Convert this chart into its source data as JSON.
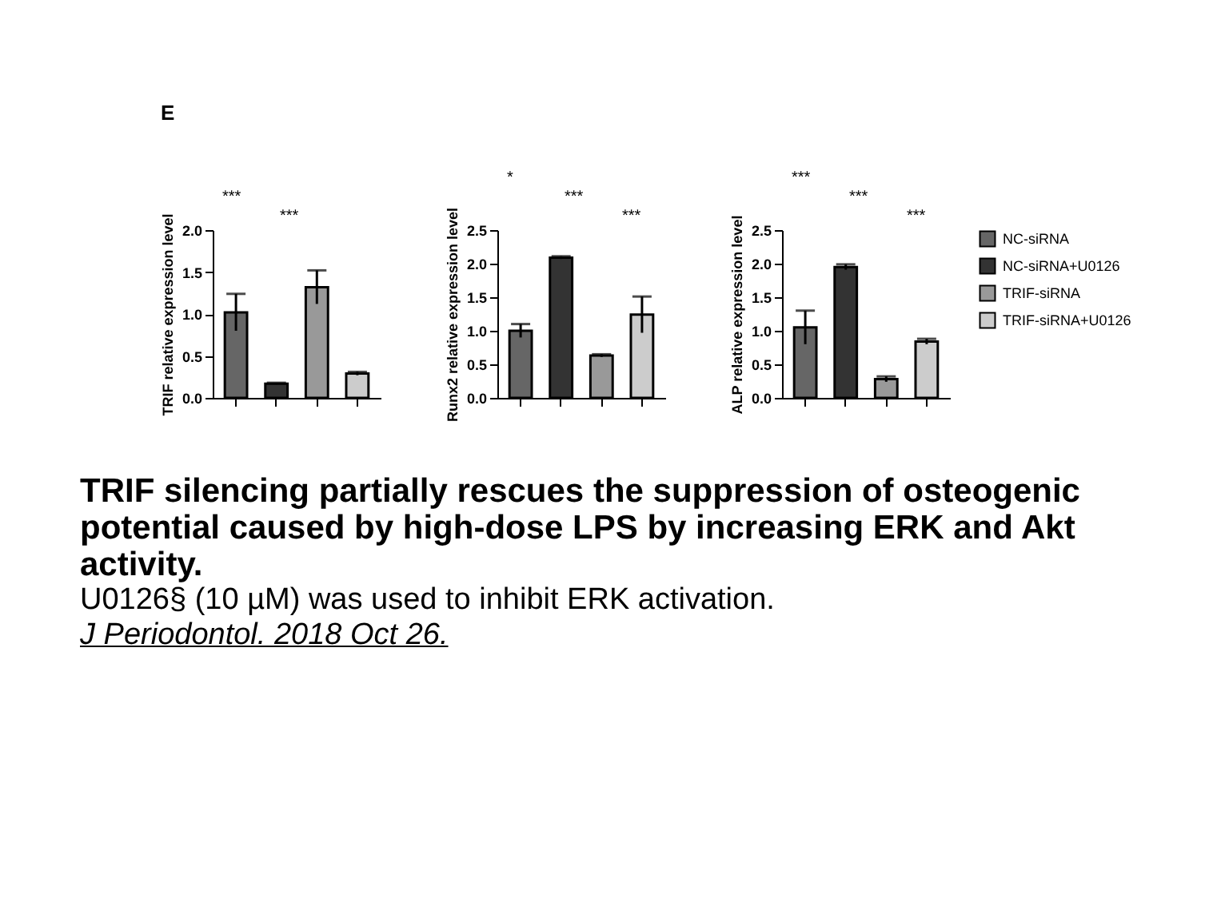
{
  "chart_data": [
    {
      "type": "bar",
      "title": "E",
      "ylabel": "TRIF relative expression level",
      "categories": [
        null,
        null,
        null,
        null
      ],
      "series": [
        {
          "color": "#666666",
          "values": [
            1.02,
            null,
            null,
            null
          ],
          "errors": [
            0.22,
            null,
            null,
            null
          ]
        },
        {
          "color": "#333333",
          "values": [
            null,
            0.17,
            null,
            null
          ],
          "errors": [
            null,
            0.01,
            null,
            null
          ]
        },
        {
          "color": "#999999",
          "values": [
            null,
            null,
            1.32,
            null
          ],
          "errors": [
            null,
            null,
            0.2,
            null
          ]
        },
        {
          "color": "#cccccc",
          "values": [
            null,
            null,
            null,
            0.29
          ],
          "errors": [
            null,
            null,
            null,
            0.02
          ]
        }
      ],
      "ylim": [
        0,
        2
      ],
      "yticks": [
        {
          "value": 0,
          "label": "0.0"
        },
        {
          "value": 0.5,
          "label": "0.5"
        },
        {
          "value": 1,
          "label": "1.0"
        },
        {
          "value": 1.5,
          "label": "1.5"
        },
        {
          "value": 2,
          "label": "2.0"
        }
      ],
      "tick_labels": "y",
      "annotations": [
        "***",
        "***"
      ]
    },
    {
      "type": "bar",
      "ylabel": "Runx2 relative expression level",
      "categories": [
        null,
        null,
        null,
        null
      ],
      "series": [
        {
          "color": "#666666",
          "values": [
            1.0,
            null,
            null,
            null
          ],
          "errors": [
            0.1,
            null,
            null,
            null
          ]
        },
        {
          "color": "#333333",
          "values": [
            null,
            2.09,
            null,
            null
          ],
          "errors": [
            null,
            0.02,
            null,
            null
          ]
        },
        {
          "color": "#999999",
          "values": [
            null,
            null,
            0.63,
            null
          ],
          "errors": [
            null,
            null,
            0.02,
            null
          ]
        },
        {
          "color": "#cccccc",
          "values": [
            null,
            null,
            null,
            1.24
          ],
          "errors": [
            null,
            null,
            null,
            0.27
          ]
        }
      ],
      "ylim": [
        0,
        2.5
      ],
      "yticks": [
        {
          "value": 0,
          "label": "0.0"
        },
        {
          "value": 0.5,
          "label": "0.5"
        },
        {
          "value": 1,
          "label": "1.0"
        },
        {
          "value": 1.5,
          "label": "1.5"
        },
        {
          "value": 2,
          "label": "2.0"
        },
        {
          "value": 2.5,
          "label": "2.5"
        }
      ],
      "tick_labels": "y",
      "annotations": [
        "*",
        "***",
        "***"
      ]
    },
    {
      "type": "bar",
      "ylabel": "ALP relative expression level",
      "categories": [
        null,
        null,
        null,
        null
      ],
      "series": [
        {
          "name": "NC-siRNA",
          "color": "#666666",
          "values": [
            1.05,
            null,
            null,
            null
          ],
          "errors": [
            0.25,
            null,
            null,
            null
          ]
        },
        {
          "name": "NC-siRNA+U0126",
          "color": "#333333",
          "values": [
            null,
            1.95,
            null,
            null
          ],
          "errors": [
            null,
            0.04,
            null,
            null
          ]
        },
        {
          "name": "TRIF-siRNA",
          "color": "#999999",
          "values": [
            null,
            null,
            0.28,
            null
          ],
          "errors": [
            null,
            null,
            0.04,
            null
          ]
        },
        {
          "name": "TRIF-siRNA+U0126",
          "color": "#cccccc",
          "values": [
            null,
            null,
            null,
            0.84
          ],
          "errors": [
            null,
            null,
            null,
            0.04
          ]
        }
      ],
      "ylim": [
        0,
        2.5
      ],
      "yticks": [
        {
          "value": 0,
          "label": "0.0"
        },
        {
          "value": 0.5,
          "label": "0.5"
        },
        {
          "value": 1,
          "label": "1.0"
        },
        {
          "value": 1.5,
          "label": "1.5"
        },
        {
          "value": 2,
          "label": "2.0"
        },
        {
          "value": 2.5,
          "label": "2.5"
        }
      ],
      "tick_labels": "y",
      "legend": "right",
      "annotations": [
        "***",
        "***",
        "***"
      ]
    },
    {
      "type": "other",
      "title": "TRIF silencing partially rescues the suppression of osteogenic potential caused by high-dose LPS by increasing ERK and Akt activity.",
      "annotations": [
        "U0126§ (10 µM) was used to inhibit ERK activation.",
        "J Periodontol. 2018 Oct 26."
      ]
    }
  ]
}
